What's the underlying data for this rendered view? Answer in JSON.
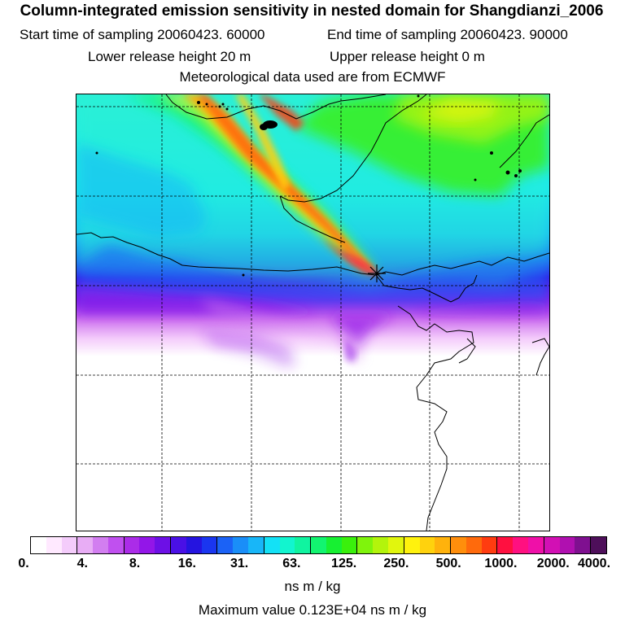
{
  "header": {
    "title": "Column-integrated emission sensitivity in nested domain for Shangdianzi_2006",
    "start_label": "Start time of sampling 20060423. 60000",
    "end_label": "End time of sampling 20060423. 90000",
    "lower_label": "Lower release height   20 m",
    "upper_label": "Upper release height    0 m",
    "met_label": "Meteorological data used are from ECMWF"
  },
  "colorbar": {
    "colors": [
      "#ffffff",
      "#ffe9ff",
      "#f4ccfb",
      "#e8adf5",
      "#d27ef0",
      "#c050ef",
      "#ab2ce8",
      "#9316e8",
      "#6d10e6",
      "#4a10e6",
      "#2514e0",
      "#1a36f0",
      "#1b62f6",
      "#1a8ef8",
      "#18b6f8",
      "#13e1f6",
      "#12f5cf",
      "#10f4a0",
      "#12f470",
      "#17f032",
      "#3af00c",
      "#7ff40c",
      "#b3f40c",
      "#e1f60d",
      "#fff20d",
      "#ffd20d",
      "#ffb20c",
      "#ff8e0c",
      "#ff6a0c",
      "#ff3c10",
      "#ff1040",
      "#ff1080",
      "#ef10a8",
      "#d210b4",
      "#b010b0",
      "#7f1090",
      "#4e0f5a"
    ],
    "tick_labels": [
      "0.",
      "4.",
      "8.",
      "16.",
      "31.",
      "63.",
      "125.",
      "250.",
      "500.",
      "1000.",
      "2000.",
      "4000."
    ],
    "unit": "ns m / kg",
    "max_label": "Maximum value  0.123E+04 ns m / kg"
  },
  "map": {
    "receptor": "Shangdianzi"
  }
}
